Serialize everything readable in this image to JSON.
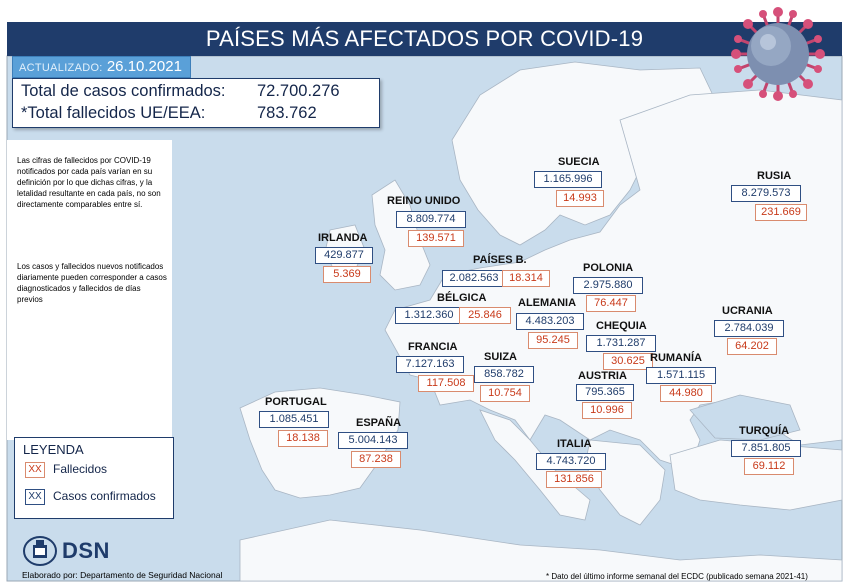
{
  "header": {
    "title": "PAÍSES MÁS AFECTADOS POR COVID-19",
    "updated_label": "ACTUALIZADO:",
    "updated_date": "26.10.2021"
  },
  "totals": {
    "confirmed_label": "Total de casos confirmados:",
    "confirmed_value": "72.700.276",
    "deaths_label": "*Total fallecidos UE/EEA:",
    "deaths_value": "783.762"
  },
  "notes": [
    "Las cifras de fallecidos por COVID-19 notificados por cada país varían en su definición por lo que dichas cifras, y la letalidad resultante en cada país, no son directamente comparables entre sí.",
    "Los casos y fallecidos nuevos notificados diariamente pueden corresponder a casos diagnosticados y fallecidos de días previos"
  ],
  "countries": [
    {
      "name": "SUECIA",
      "cases": "1.165.996",
      "deaths": "14.993"
    },
    {
      "name": "RUSIA",
      "cases": "8.279.573",
      "deaths": "231.669"
    },
    {
      "name": "REINO UNIDO",
      "cases": "8.809.774",
      "deaths": "139.571"
    },
    {
      "name": "IRLANDA",
      "cases": "429.877",
      "deaths": "5.369"
    },
    {
      "name": "PAÍSES B.",
      "cases": "2.082.563",
      "deaths": "18.314"
    },
    {
      "name": "POLONIA",
      "cases": "2.975.880",
      "deaths": "76.447"
    },
    {
      "name": "BÉLGICA",
      "cases": "1.312.360",
      "deaths": "25.846"
    },
    {
      "name": "ALEMANIA",
      "cases": "4.483.203",
      "deaths": "95.245"
    },
    {
      "name": "UCRANIA",
      "cases": "2.784.039",
      "deaths": "64.202"
    },
    {
      "name": "CHEQUIA",
      "cases": "1.731.287",
      "deaths": "30.625"
    },
    {
      "name": "FRANCIA",
      "cases": "7.127.163",
      "deaths": "117.508"
    },
    {
      "name": "SUIZA",
      "cases": "858.782",
      "deaths": "10.754"
    },
    {
      "name": "RUMANÍA",
      "cases": "1.571.115",
      "deaths": "44.980"
    },
    {
      "name": "AUSTRIA",
      "cases": "795.365",
      "deaths": "10.996"
    },
    {
      "name": "PORTUGAL",
      "cases": "1.085.451",
      "deaths": "18.138"
    },
    {
      "name": "ESPAÑA",
      "cases": "5.004.143",
      "deaths": "87.238"
    },
    {
      "name": "ITALIA",
      "cases": "4.743.720",
      "deaths": "131.856"
    },
    {
      "name": "TURQUÍA",
      "cases": "7.851.805",
      "deaths": "69.112"
    }
  ],
  "legend": {
    "title": "LEYENDA",
    "swatch_text": "XX",
    "deaths_label": "Fallecidos",
    "cases_label": "Casos confirmados"
  },
  "footer": {
    "logo_text": "DSN",
    "credit": "Elaborado por: Departamento de Seguridad Nacional",
    "footnote": "* Dato del último informe semanal del ECDC (publicado semana 2021-41)"
  },
  "colors": {
    "header_bg": "#1f3c6b",
    "updated_bg": "#5aa0d8",
    "sea": "#c9dcec",
    "land": "#f7f9fb",
    "cases_text": "#1f3c6b",
    "deaths_text": "#c83a1a"
  }
}
